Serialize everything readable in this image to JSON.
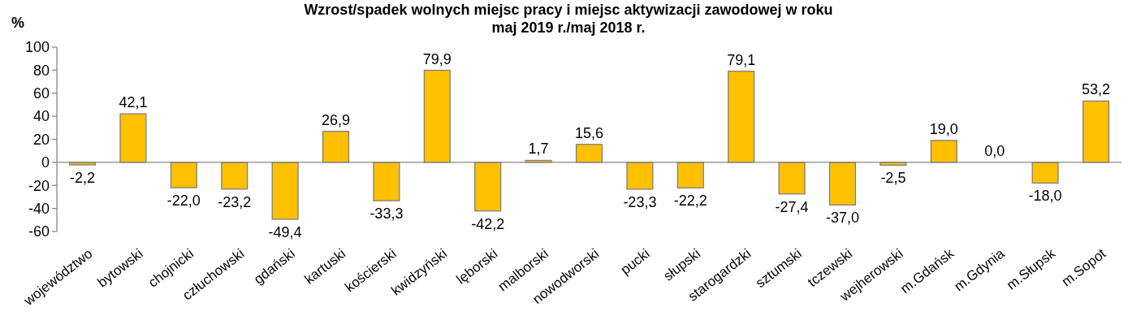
{
  "chart_data": {
    "type": "bar",
    "title": "Wzrost/spadek wolnych miejsc pracy i miejsc aktywizacji zawodowej w roku\nmaj 2019 r./maj 2018 r.",
    "ylabel": "%",
    "categories": [
      "województwo",
      "bytowski",
      "chojnicki",
      "człuchowski",
      "gdański",
      "kartuski",
      "kościerski",
      "kwidzyński",
      "lęborski",
      "malborski",
      "nowodworski",
      "pucki",
      "słupski",
      "starogardzki",
      "sztumski",
      "tczewski",
      "wejherowski",
      "m.Gdańsk",
      "m.Gdynia",
      "m.Słupsk",
      "m.Sopot"
    ],
    "values": [
      -2.2,
      42.1,
      -22.0,
      -23.2,
      -49.4,
      26.9,
      -33.3,
      79.9,
      -42.2,
      1.7,
      15.6,
      -23.3,
      -22.2,
      79.1,
      -27.4,
      -37.0,
      -2.5,
      19.0,
      0.0,
      -18.0,
      53.2
    ],
    "value_labels": [
      "-2,2",
      "42,1",
      "-22,0",
      "-23,2",
      "-49,4",
      "26,9",
      "-33,3",
      "79,9",
      "-42,2",
      "1,7",
      "15,6",
      "-23,3",
      "-22,2",
      "79,1",
      "-27,4",
      "-37,0",
      "-2,5",
      "19,0",
      "0,0",
      "-18,0",
      "53,2"
    ],
    "color": "#ffc000",
    "ylim": [
      -60,
      100
    ],
    "yticks": [
      -60,
      -40,
      -20,
      0,
      20,
      40,
      60,
      80,
      100
    ]
  }
}
